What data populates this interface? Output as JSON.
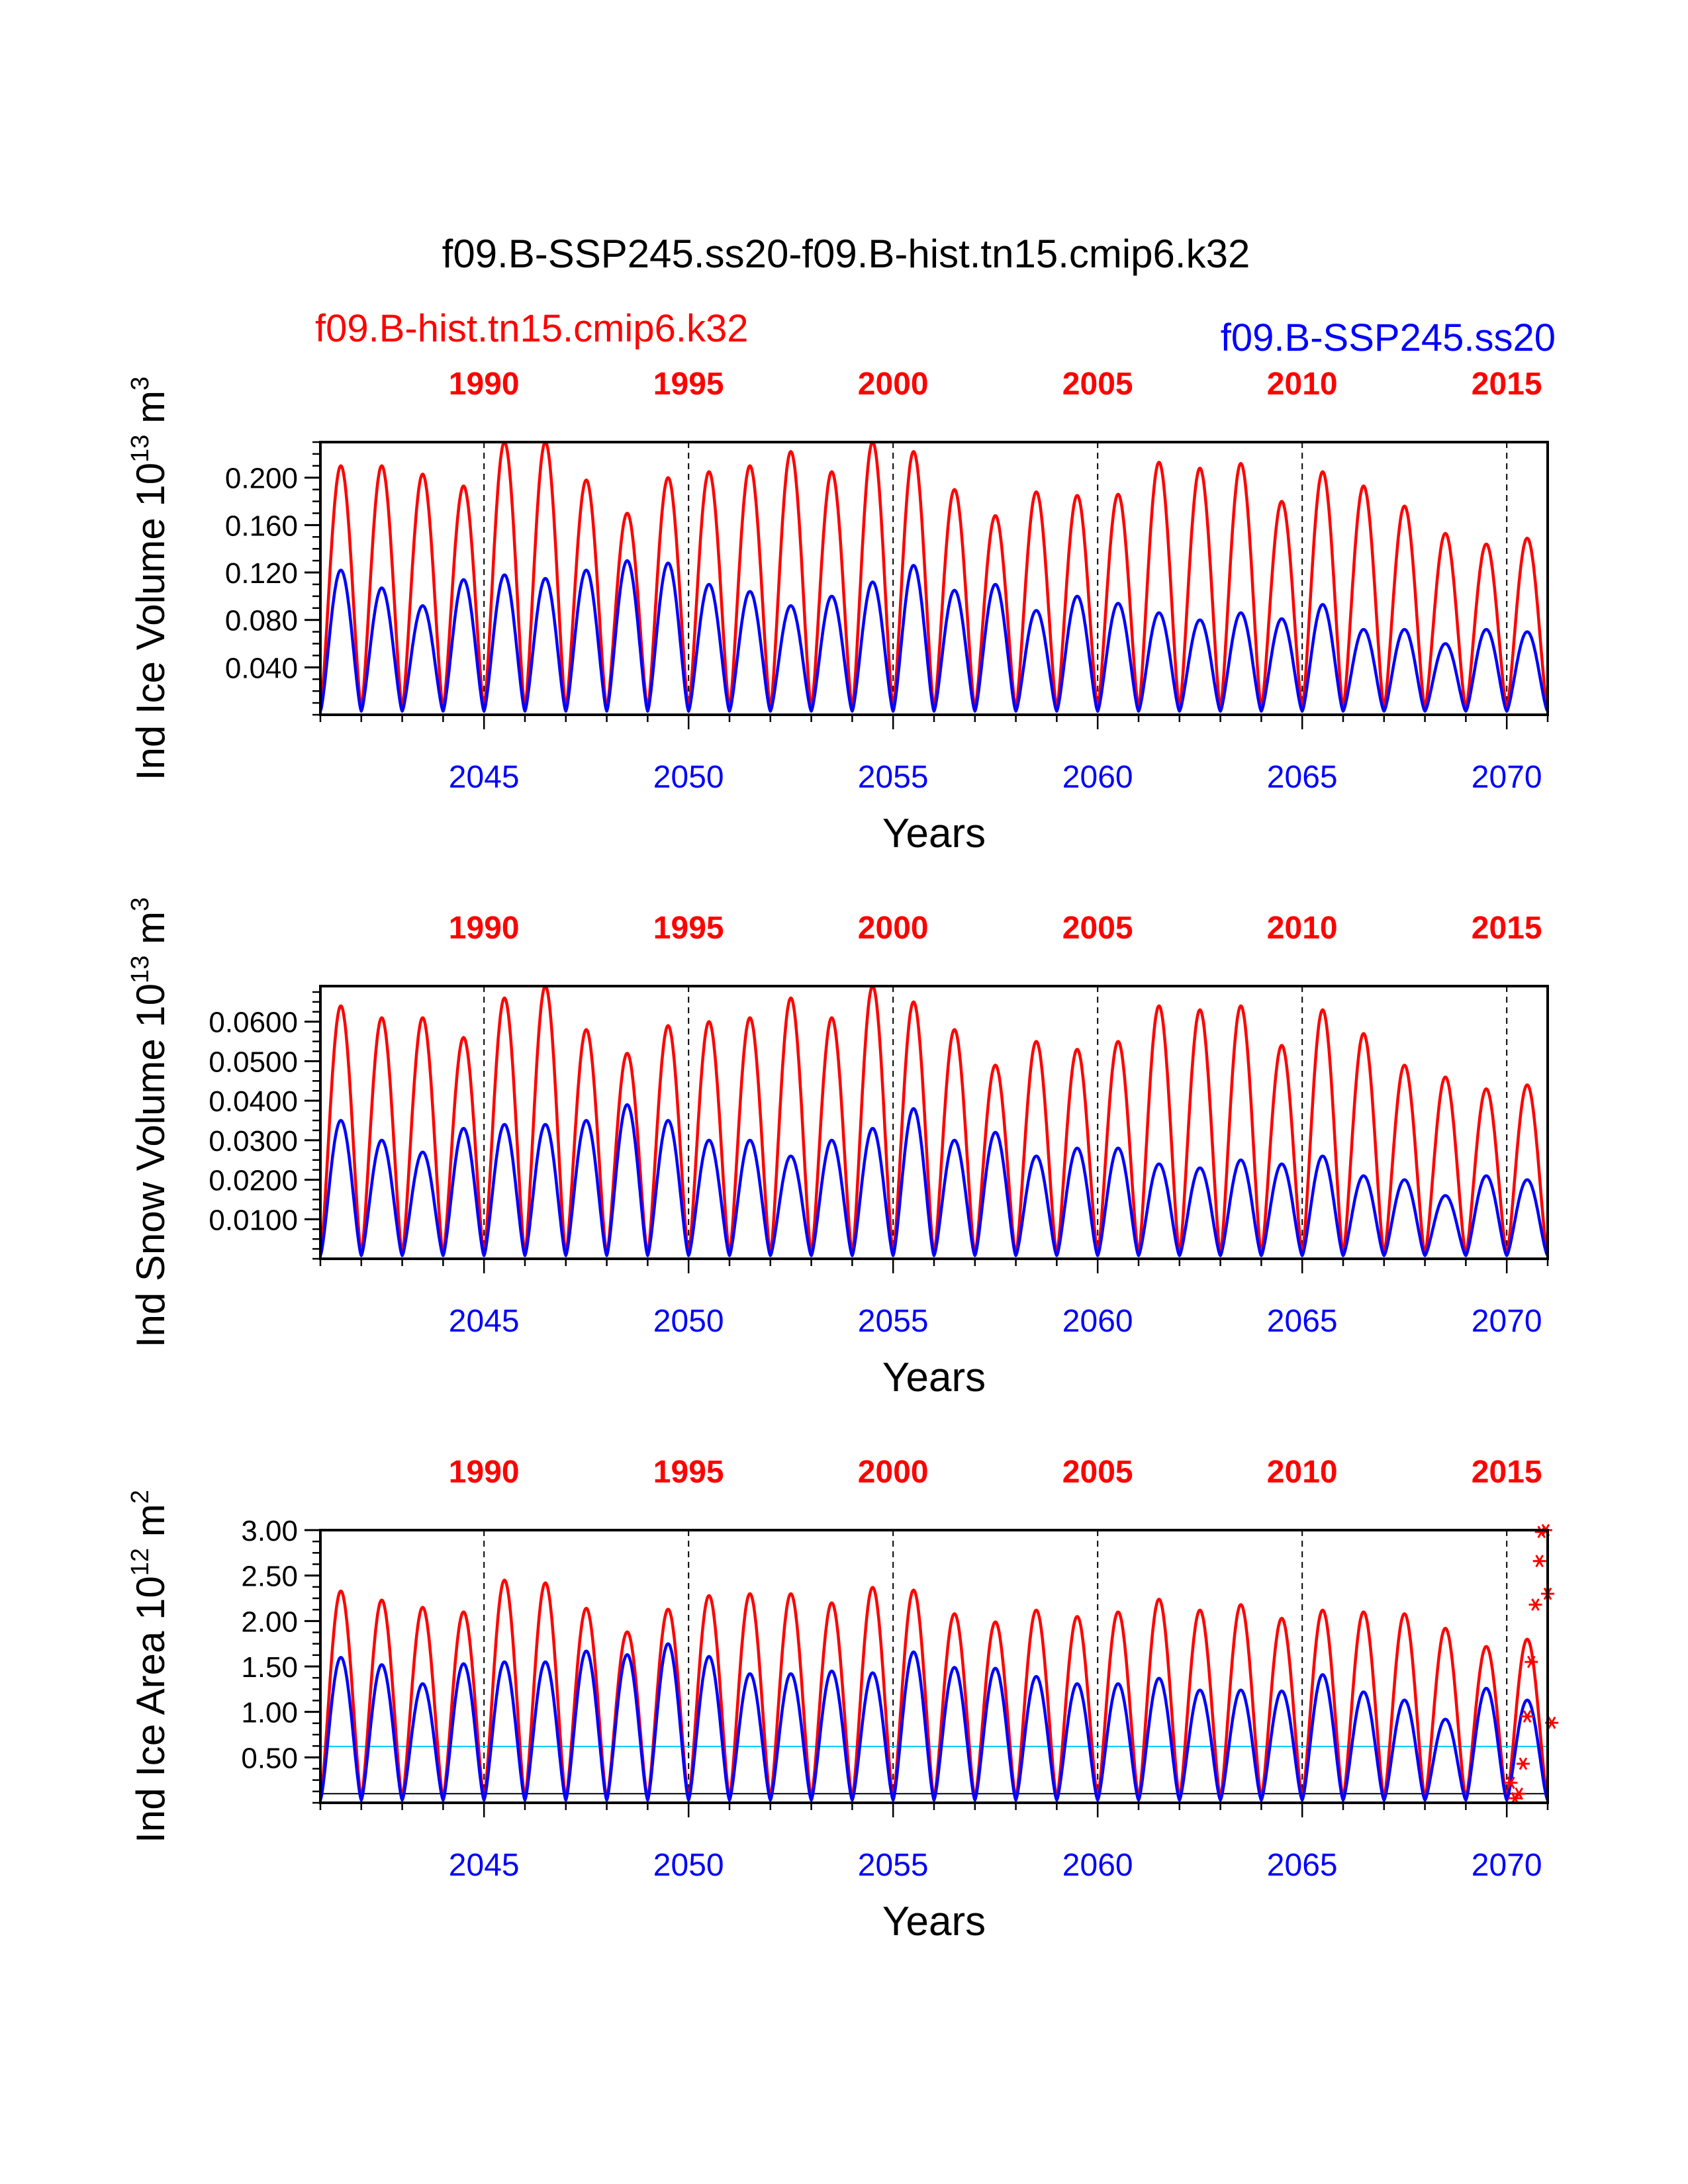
{
  "title": "f09.B-SSP245.ss20-f09.B-hist.tn15.cmip6.k32",
  "legend": {
    "left_label": "f09.B-hist.tn15.cmip6.k32",
    "left_color": "#ff0000",
    "right_label": "f09.B-SSP245.ss20",
    "right_color": "#0000ff"
  },
  "chart_data": [
    {
      "type": "line",
      "ylabel_main": "Ind Ice Volume 10",
      "ylabel_exp": "13",
      "ylabel_tail": " m",
      "ylabel_exp2": "3",
      "xlabel": "Years",
      "xlim": [
        2041,
        2071
      ],
      "ylim": [
        0,
        0.23
      ],
      "yticks": [
        0.04,
        0.08,
        0.12,
        0.16,
        0.2
      ],
      "ytick_labels": [
        "0.040",
        "0.080",
        "0.120",
        "0.160",
        "0.200"
      ],
      "bottom_ticks": [
        2045,
        2050,
        2055,
        2060,
        2065,
        2070
      ],
      "bottom_tick_labels": [
        "2045",
        "2050",
        "2055",
        "2060",
        "2065",
        "2070"
      ],
      "top_ticks_at": [
        2045,
        2050,
        2055,
        2060,
        2065,
        2070
      ],
      "top_tick_labels": [
        "1990",
        "1995",
        "2000",
        "2005",
        "2010",
        "2015"
      ],
      "series": [
        {
          "name": "f09.B-hist.tn15.cmip6.k32",
          "color": "#ff0000",
          "min": 0.005,
          "peaks": [
            0.21,
            0.21,
            0.203,
            0.193,
            0.23,
            0.23,
            0.198,
            0.17,
            0.2,
            0.205,
            0.21,
            0.222,
            0.205,
            0.23,
            0.222,
            0.19,
            0.168,
            0.188,
            0.185,
            0.186,
            0.213,
            0.208,
            0.212,
            0.18,
            0.205,
            0.193,
            0.176,
            0.153,
            0.144,
            0.149
          ]
        },
        {
          "name": "f09.B-SSP245.ss20",
          "color": "#0000ff",
          "min": 0.003,
          "peaks": [
            0.122,
            0.107,
            0.092,
            0.114,
            0.118,
            0.115,
            0.122,
            0.13,
            0.128,
            0.11,
            0.104,
            0.092,
            0.1,
            0.112,
            0.126,
            0.105,
            0.11,
            0.088,
            0.1,
            0.094,
            0.086,
            0.08,
            0.086,
            0.081,
            0.093,
            0.072,
            0.072,
            0.06,
            0.072,
            0.07
          ]
        }
      ]
    },
    {
      "type": "line",
      "ylabel_main": "Ind Snow Volume 10",
      "ylabel_exp": "13",
      "ylabel_tail": " m",
      "ylabel_exp2": "3",
      "xlabel": "Years",
      "xlim": [
        2041,
        2071
      ],
      "ylim": [
        0,
        0.069
      ],
      "yticks": [
        0.01,
        0.02,
        0.03,
        0.04,
        0.05,
        0.06
      ],
      "ytick_labels": [
        "0.0100",
        "0.0200",
        "0.0300",
        "0.0400",
        "0.0500",
        "0.0600"
      ],
      "bottom_ticks": [
        2045,
        2050,
        2055,
        2060,
        2065,
        2070
      ],
      "bottom_tick_labels": [
        "2045",
        "2050",
        "2055",
        "2060",
        "2065",
        "2070"
      ],
      "top_ticks_at": [
        2045,
        2050,
        2055,
        2060,
        2065,
        2070
      ],
      "top_tick_labels": [
        "1990",
        "1995",
        "2000",
        "2005",
        "2010",
        "2015"
      ],
      "series": [
        {
          "name": "f09.B-hist.tn15.cmip6.k32",
          "color": "#ff0000",
          "min": 0.001,
          "peaks": [
            0.064,
            0.061,
            0.061,
            0.056,
            0.066,
            0.069,
            0.058,
            0.052,
            0.059,
            0.06,
            0.061,
            0.066,
            0.061,
            0.069,
            0.065,
            0.058,
            0.049,
            0.055,
            0.053,
            0.055,
            0.064,
            0.063,
            0.064,
            0.054,
            0.063,
            0.057,
            0.049,
            0.046,
            0.043,
            0.044
          ]
        },
        {
          "name": "f09.B-SSP245.ss20",
          "color": "#0000ff",
          "min": 0.0008,
          "peaks": [
            0.035,
            0.03,
            0.027,
            0.033,
            0.034,
            0.034,
            0.035,
            0.039,
            0.035,
            0.03,
            0.03,
            0.026,
            0.03,
            0.033,
            0.038,
            0.03,
            0.032,
            0.026,
            0.028,
            0.028,
            0.024,
            0.023,
            0.025,
            0.024,
            0.026,
            0.021,
            0.02,
            0.016,
            0.021,
            0.02
          ]
        }
      ]
    },
    {
      "type": "line",
      "ylabel_main": "Ind Ice Area 10",
      "ylabel_exp": "12",
      "ylabel_tail": " m",
      "ylabel_exp2": "2",
      "xlabel": "Years",
      "xlim": [
        2041,
        2071
      ],
      "ylim": [
        0,
        3
      ],
      "yticks": [
        0.5,
        1.0,
        1.5,
        2.0,
        2.5,
        3.0
      ],
      "ytick_labels": [
        "0.50",
        "1.00",
        "1.50",
        "2.00",
        "2.50",
        "3.00"
      ],
      "bottom_ticks": [
        2045,
        2050,
        2055,
        2060,
        2065,
        2070
      ],
      "bottom_tick_labels": [
        "2045",
        "2050",
        "2055",
        "2060",
        "2065",
        "2070"
      ],
      "top_ticks_at": [
        2045,
        2050,
        2055,
        2060,
        2065,
        2070
      ],
      "top_tick_labels": [
        "1990",
        "1995",
        "2000",
        "2005",
        "2010",
        "2015"
      ],
      "hlines": [
        {
          "y": 0.62,
          "color": "#00c8ff"
        },
        {
          "y": 0.1,
          "color": "#000000"
        }
      ],
      "series": [
        {
          "name": "f09.B-hist.tn15.cmip6.k32",
          "color": "#ff0000",
          "min": 0.05,
          "peaks": [
            2.33,
            2.23,
            2.15,
            2.1,
            2.45,
            2.42,
            2.14,
            1.88,
            2.13,
            2.28,
            2.3,
            2.3,
            2.2,
            2.37,
            2.34,
            2.08,
            1.99,
            2.12,
            2.05,
            2.1,
            2.24,
            2.12,
            2.18,
            2.03,
            2.12,
            2.1,
            2.08,
            1.92,
            1.72,
            1.8
          ]
        },
        {
          "name": "f09.B-SSP245.ss20",
          "color": "#0000ff",
          "min": 0.03,
          "peaks": [
            1.6,
            1.52,
            1.31,
            1.53,
            1.55,
            1.55,
            1.67,
            1.63,
            1.75,
            1.61,
            1.42,
            1.42,
            1.45,
            1.43,
            1.66,
            1.49,
            1.48,
            1.39,
            1.31,
            1.31,
            1.37,
            1.24,
            1.24,
            1.23,
            1.41,
            1.22,
            1.13,
            0.92,
            1.26,
            1.13
          ]
        }
      ],
      "markers": {
        "color": "#ff0000",
        "points": [
          [
            2070.1,
            0.22
          ],
          [
            2070.2,
            0.05
          ],
          [
            2070.3,
            0.1
          ],
          [
            2070.4,
            0.43
          ],
          [
            2070.5,
            0.95
          ],
          [
            2070.6,
            1.55
          ],
          [
            2070.7,
            2.18
          ],
          [
            2070.8,
            2.66
          ],
          [
            2070.85,
            2.98
          ],
          [
            2070.95,
            3.0
          ],
          [
            2071.0,
            2.3
          ],
          [
            2071.1,
            0.88
          ]
        ]
      }
    }
  ]
}
